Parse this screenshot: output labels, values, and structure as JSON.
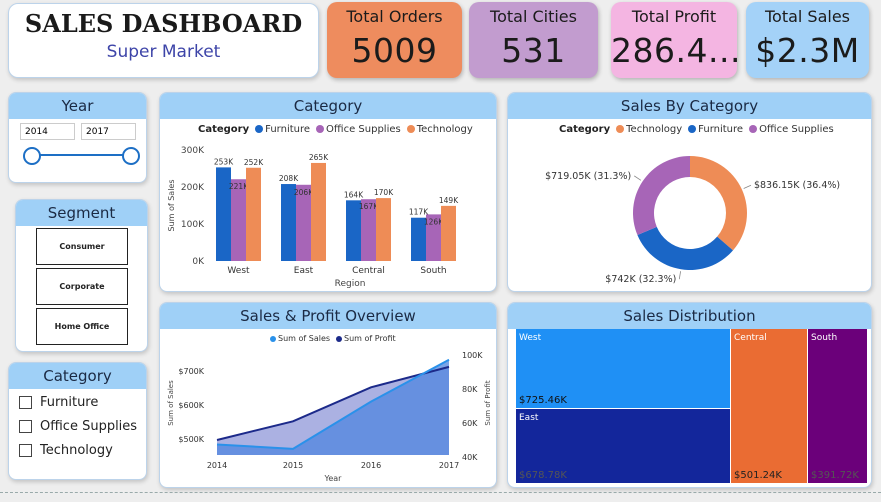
{
  "title": {
    "main": "SALES DASHBOARD",
    "sub": "Super Market"
  },
  "kpis": [
    {
      "label": "Total Orders",
      "value": "5009",
      "color": "#ee8c5e"
    },
    {
      "label": "Total Cities",
      "value": "531",
      "color": "#c29ccf"
    },
    {
      "label": "Total Profit",
      "value": "286.4...",
      "color": "#f4b5e2"
    },
    {
      "label": "Total Sales",
      "value": "$2.3M",
      "color": "#a4d2f8"
    }
  ],
  "year_slicer": {
    "header": "Year",
    "from": "2014",
    "to": "2017"
  },
  "segment": {
    "header": "Segment",
    "options": [
      "Consumer",
      "Corporate",
      "Home Office"
    ]
  },
  "category_filter": {
    "header": "Category",
    "options": [
      "Furniture",
      "Office Supplies",
      "Technology"
    ]
  },
  "colors": {
    "furniture": "#1a66c6",
    "office_supplies": "#a765b7",
    "technology": "#ee8c56",
    "sales_line": "#2a91ea",
    "profit_line": "#1c2a8a",
    "header": "#9fd0f7"
  },
  "category_chart": {
    "header": "Category",
    "chart_data": {
      "type": "bar",
      "categories": [
        "West",
        "East",
        "Central",
        "South"
      ],
      "series": [
        {
          "name": "Furniture",
          "values": [
            253,
            208,
            164,
            117
          ],
          "labels": [
            "253K",
            "208K",
            "164K",
            "117K"
          ]
        },
        {
          "name": "Office Supplies",
          "values": [
            221,
            206,
            167,
            126
          ],
          "labels": [
            "221K",
            "206K",
            "167K",
            "126K"
          ]
        },
        {
          "name": "Technology",
          "values": [
            252,
            265,
            170,
            149
          ],
          "labels": [
            "252K",
            "265K",
            "170K",
            "149K"
          ]
        }
      ],
      "legend_title": "Category",
      "xlabel": "Region",
      "ylabel": "Sum of Sales",
      "yticks": [
        "0K",
        "100K",
        "200K",
        "300K"
      ],
      "ylim": [
        0,
        300
      ]
    }
  },
  "sales_by_category": {
    "header": "Sales By Category",
    "chart_data": {
      "type": "pie",
      "legend_title": "Category",
      "slices": [
        {
          "name": "Technology",
          "value": 836.15,
          "label": "$836.15K (36.4%)"
        },
        {
          "name": "Furniture",
          "value": 742,
          "label": "$742K (32.3%)"
        },
        {
          "name": "Office Supplies",
          "value": 719.05,
          "label": "$719.05K (31.3%)"
        }
      ]
    }
  },
  "overview": {
    "header": "Sales & Profit Overview",
    "chart_data": {
      "type": "area",
      "x": [
        "2014",
        "2015",
        "2016",
        "2017"
      ],
      "series": [
        {
          "name": "Sum of Sales",
          "values": [
            484,
            471,
            610,
            733
          ]
        },
        {
          "name": "Sum of Profit",
          "values": [
            50,
            61,
            81,
            93
          ]
        }
      ],
      "xlabel": "Year",
      "ylabel_left": "Sum of Sales",
      "ylabel_right": "Sum of Profit",
      "yticks_left": [
        "$500K",
        "$600K",
        "$700K"
      ],
      "yticks_right": [
        "40K",
        "60K",
        "80K",
        "100K"
      ]
    }
  },
  "distribution": {
    "header": "Sales Distribution",
    "chart_data": {
      "type": "treemap",
      "items": [
        {
          "name": "West",
          "value": 725.46,
          "label": "$725.46K",
          "color": "#1f90f5"
        },
        {
          "name": "East",
          "value": 678.78,
          "label": "$678.78K",
          "color": "#13269b"
        },
        {
          "name": "Central",
          "value": 501.24,
          "label": "$501.24K",
          "color": "#ea6c33"
        },
        {
          "name": "South",
          "value": 391.72,
          "label": "$391.72K",
          "color": "#6b007a"
        }
      ]
    }
  }
}
